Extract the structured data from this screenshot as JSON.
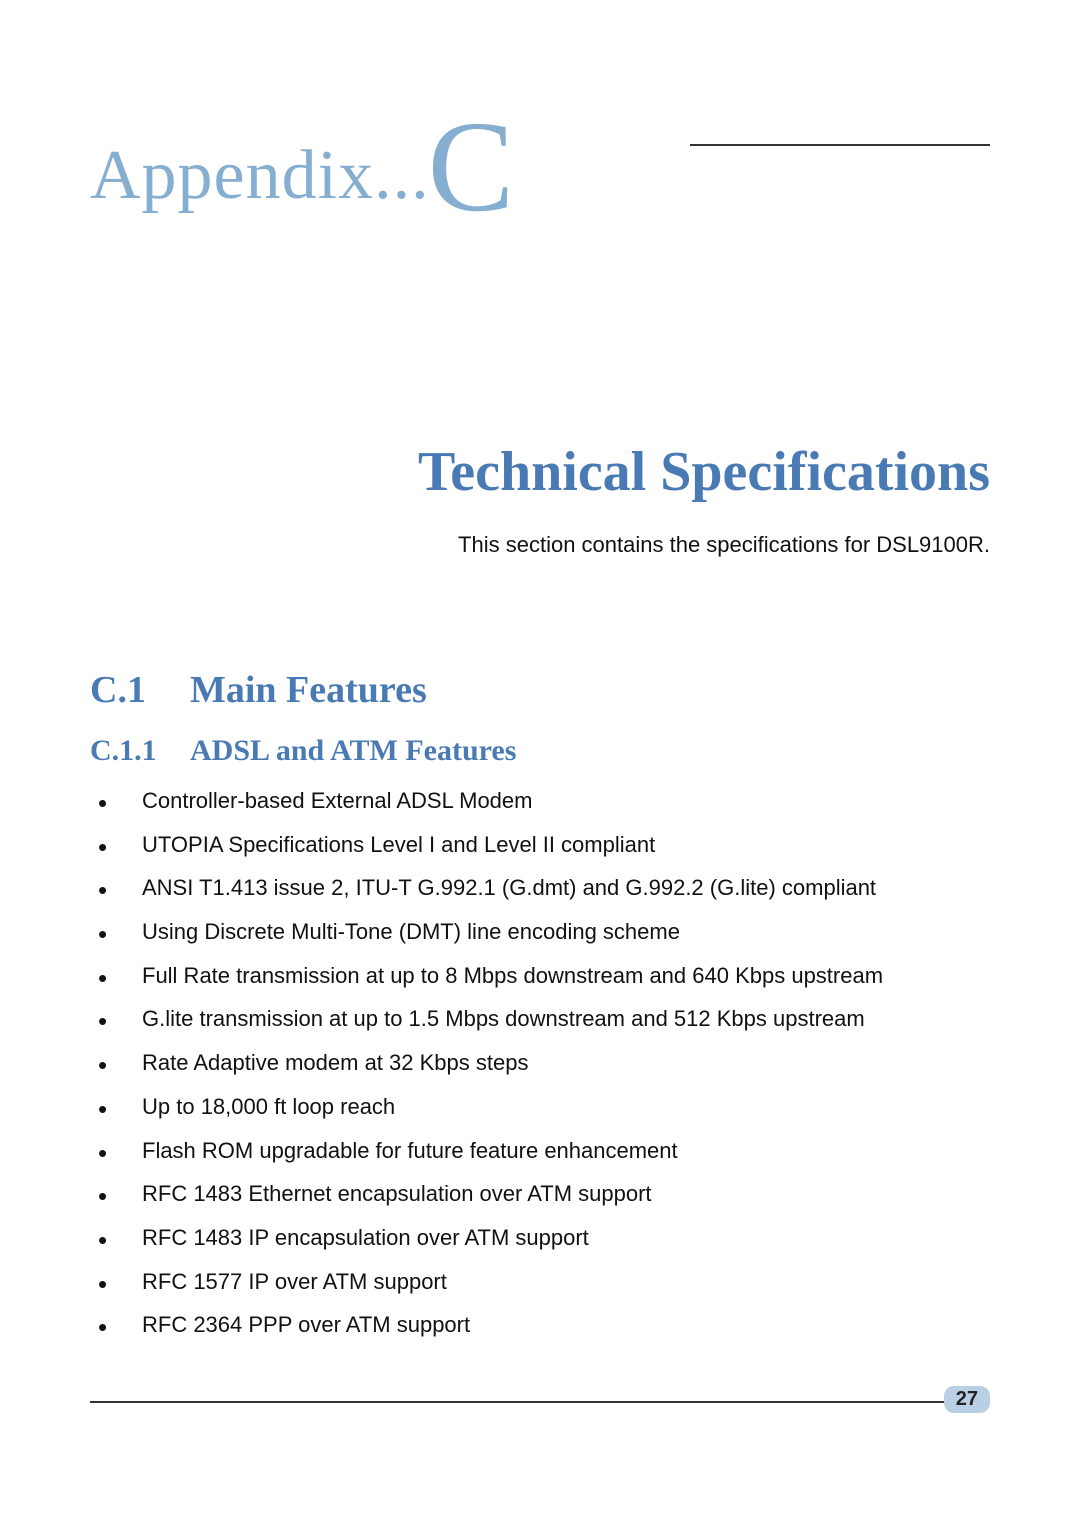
{
  "colors": {
    "light_blue": "#85aed1",
    "heading_blue": "#4a7ab3",
    "page_number_bg": "#b9cfe3",
    "text": "#111111",
    "rule": "#333333",
    "background": "#ffffff"
  },
  "typography": {
    "appendix_label_fontsize": 70,
    "appendix_letter_fontsize": 130,
    "title_fontsize": 56,
    "intro_fontsize": 22,
    "h2_fontsize": 38,
    "h3_fontsize": 30,
    "body_fontsize": 22,
    "appendix_font": "serif",
    "heading_font": "serif-bold",
    "body_font": "sans-serif"
  },
  "header": {
    "appendix_label": "Appendix...",
    "appendix_letter": "C"
  },
  "title": "Technical Specifications",
  "intro": "This section contains the specifications for DSL9100R.",
  "section_h2": {
    "number": "C.1",
    "text": "Main Features"
  },
  "section_h3": {
    "number": "C.1.1",
    "text": "ADSL and ATM Features"
  },
  "features": [
    "Controller-based External ADSL Modem",
    "UTOPIA Specifications Level I and Level II compliant",
    "ANSI T1.413 issue 2, ITU-T G.992.1 (G.dmt) and G.992.2 (G.lite) compliant",
    "Using Discrete Multi-Tone (DMT) line encoding scheme",
    "Full Rate transmission at up to 8 Mbps downstream and 640 Kbps upstream",
    "G.lite transmission at up to 1.5 Mbps downstream and 512 Kbps upstream",
    "Rate Adaptive modem at 32 Kbps steps",
    "Up to 18,000 ft loop reach",
    "Flash ROM upgradable for future feature enhancement",
    "RFC 1483 Ethernet encapsulation over ATM support",
    "RFC 1483 IP encapsulation over ATM support",
    "RFC 1577 IP over ATM support",
    "RFC 2364 PPP over ATM support"
  ],
  "page_number": "27"
}
